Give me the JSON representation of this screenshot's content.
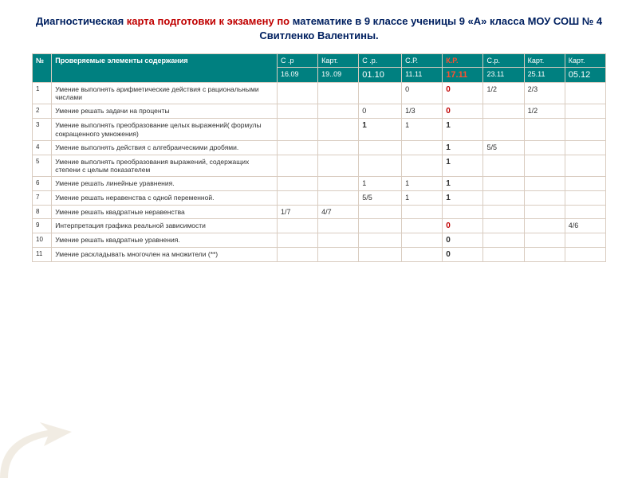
{
  "title": {
    "part1": "Диагностическая ",
    "accent": "карта подготовки к экзамену по ",
    "part2": "математике в 9 классе ученицы 9 «А» класса МОУ СОШ № 4 Свитленко Валентины."
  },
  "colors": {
    "header_bg": "#008080",
    "header_fg": "#ffffff",
    "accent_red": "#c00000",
    "title_blue": "#002060",
    "border": "#d9ccc0"
  },
  "headers": {
    "num_label": "№",
    "desc_label": "Проверяемые элементы содержания",
    "types": [
      "С .р",
      "Карт.",
      "С .р.",
      "С.Р.",
      "К.Р.",
      "С.р.",
      "Карт.",
      "Карт."
    ],
    "type_red_index": 4,
    "dates": [
      "16.09",
      "19..09",
      "01.10",
      "11.11",
      "17.11",
      "23.11",
      "25.11",
      "05.12"
    ],
    "date_bold_idx": [
      2,
      4,
      7
    ],
    "date_red_idx": [
      4
    ]
  },
  "rows": [
    {
      "n": "1",
      "d": "Умение выполнять арифметические действия с рациональными числами",
      "v": [
        "",
        "",
        "",
        "0",
        "0",
        "1/2",
        "2/3",
        ""
      ],
      "b": [
        4
      ],
      "r": [
        4
      ]
    },
    {
      "n": "2",
      "d": "Умение решать задачи на проценты",
      "v": [
        "",
        "",
        "0",
        "1/3",
        "0",
        "",
        "1/2",
        ""
      ],
      "b": [
        4
      ],
      "r": [
        4
      ]
    },
    {
      "n": "3",
      "d": "Умение выполнять преобразование целых выражений( формулы сокращенного умножения)",
      "v": [
        "",
        "",
        "1",
        "1",
        "1",
        "",
        "",
        ""
      ],
      "b": [
        2,
        4
      ],
      "r": []
    },
    {
      "n": "4",
      "d": "Умение выполнять действия с алгебраическими дробями.",
      "v": [
        "",
        "",
        "",
        "",
        "1",
        "5/5",
        "",
        ""
      ],
      "b": [
        4
      ],
      "r": []
    },
    {
      "n": "5",
      "d": "Умение выполнять преобразования выражений, содержащих степени с целым показателем",
      "v": [
        "",
        "",
        "",
        "",
        "1",
        "",
        "",
        ""
      ],
      "b": [
        4
      ],
      "r": []
    },
    {
      "n": "6",
      "d": "Умение решать линейные уравнения.",
      "v": [
        "",
        "",
        "1",
        "1",
        "1",
        "",
        "",
        ""
      ],
      "b": [
        4
      ],
      "r": []
    },
    {
      "n": "7",
      "d": "Умение решать неравенства с одной переменной.",
      "v": [
        "",
        "",
        "5/5",
        "1",
        "1",
        "",
        "",
        ""
      ],
      "b": [
        4
      ],
      "r": []
    },
    {
      "n": "8",
      "d": "Умение решать квадратные неравенства",
      "v": [
        "1/7",
        "4/7",
        "",
        "",
        "",
        "",
        "",
        ""
      ],
      "b": [],
      "r": []
    },
    {
      "n": "9",
      "d": "Интерпретация графика реальной зависимости",
      "v": [
        "",
        "",
        "",
        "",
        "0",
        "",
        "",
        "4/6"
      ],
      "b": [
        4
      ],
      "r": [
        4
      ]
    },
    {
      "n": "10",
      "d": "Умение решать квадратные уравнения.",
      "v": [
        "",
        "",
        "",
        "",
        "0",
        "",
        "",
        ""
      ],
      "b": [
        4
      ],
      "r": []
    },
    {
      "n": "11",
      "d": "Умение раскладывать многочлен на множители (**)",
      "v": [
        "",
        "",
        "",
        "",
        "0",
        "",
        "",
        ""
      ],
      "b": [
        4
      ],
      "r": []
    }
  ]
}
